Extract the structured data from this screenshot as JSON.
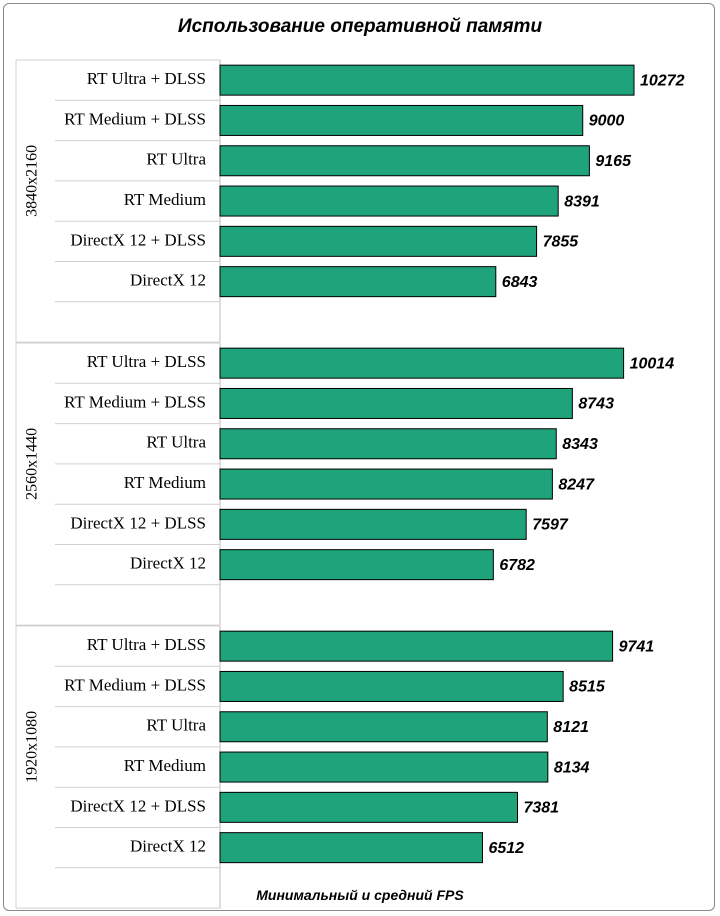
{
  "chart_data": {
    "type": "bar",
    "orientation": "horizontal",
    "title": "Использование оперативной памяти",
    "xlabel": "Минимальный и средний FPS",
    "bar_color": "#1fa37a",
    "xlim": [
      0,
      10900
    ],
    "groups": [
      {
        "name": "3840x2160",
        "categories": [
          "RT Ultra + DLSS",
          "RT Medium + DLSS",
          "RT Ultra",
          "RT Medium",
          "DirectX 12 + DLSS",
          "DirectX 12"
        ],
        "values": [
          10272,
          9000,
          9165,
          8391,
          7855,
          6843
        ]
      },
      {
        "name": "2560x1440",
        "categories": [
          "RT Ultra + DLSS",
          "RT Medium + DLSS",
          "RT Ultra",
          "RT Medium",
          "DirectX 12 + DLSS",
          "DirectX 12"
        ],
        "values": [
          10014,
          8743,
          8343,
          8247,
          7597,
          6782
        ]
      },
      {
        "name": "1920x1080",
        "categories": [
          "RT Ultra + DLSS",
          "RT Medium + DLSS",
          "RT Ultra",
          "RT Medium",
          "DirectX 12 + DLSS",
          "DirectX 12"
        ],
        "values": [
          9741,
          8515,
          8121,
          8134,
          7381,
          6512
        ]
      }
    ]
  }
}
